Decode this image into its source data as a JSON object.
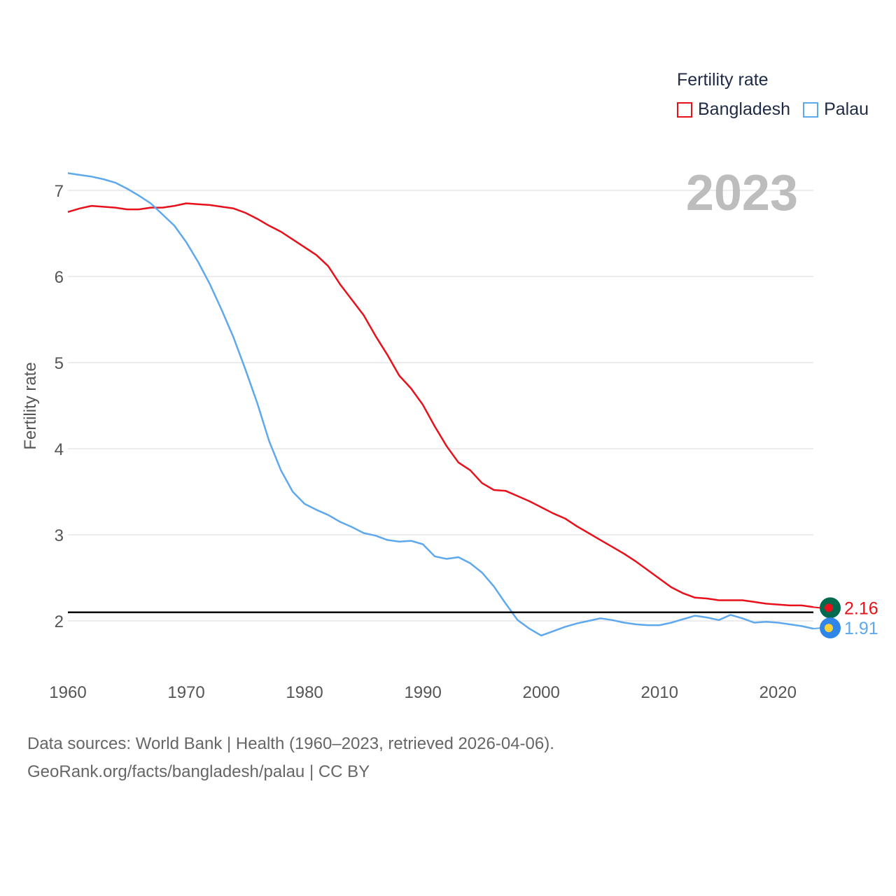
{
  "chart_data": {
    "type": "line",
    "title": "Fertility rate",
    "ylabel": "Fertility rate",
    "xlabel": "",
    "year_label": "2023",
    "xlim": [
      1960,
      2023
    ],
    "ylim": [
      1.4,
      7.3
    ],
    "x_ticks": [
      1960,
      1970,
      1980,
      1990,
      2000,
      2010,
      2020
    ],
    "y_ticks": [
      2,
      3,
      4,
      5,
      6,
      7
    ],
    "reference_line": 2.1,
    "x": [
      1960,
      1961,
      1962,
      1963,
      1964,
      1965,
      1966,
      1967,
      1968,
      1969,
      1970,
      1971,
      1972,
      1973,
      1974,
      1975,
      1976,
      1977,
      1978,
      1979,
      1980,
      1981,
      1982,
      1983,
      1984,
      1985,
      1986,
      1987,
      1988,
      1989,
      1990,
      1991,
      1992,
      1993,
      1994,
      1995,
      1996,
      1997,
      1998,
      1999,
      2000,
      2001,
      2002,
      2003,
      2004,
      2005,
      2006,
      2007,
      2008,
      2009,
      2010,
      2011,
      2012,
      2013,
      2014,
      2015,
      2016,
      2017,
      2018,
      2019,
      2020,
      2021,
      2022,
      2023
    ],
    "series": [
      {
        "name": "Bangladesh",
        "color": "#e8111b",
        "end_label": "2.16",
        "values": [
          6.75,
          6.79,
          6.82,
          6.81,
          6.8,
          6.78,
          6.78,
          6.8,
          6.8,
          6.82,
          6.85,
          6.84,
          6.83,
          6.81,
          6.79,
          6.74,
          6.67,
          6.59,
          6.52,
          6.43,
          6.34,
          6.25,
          6.12,
          5.91,
          5.73,
          5.55,
          5.31,
          5.09,
          4.85,
          4.7,
          4.51,
          4.26,
          4.03,
          3.84,
          3.75,
          3.6,
          3.52,
          3.51,
          3.45,
          3.39,
          3.32,
          3.25,
          3.19,
          3.1,
          3.02,
          2.94,
          2.86,
          2.78,
          2.69,
          2.59,
          2.49,
          2.39,
          2.32,
          2.27,
          2.26,
          2.24,
          2.24,
          2.24,
          2.22,
          2.2,
          2.19,
          2.18,
          2.18,
          2.16
        ]
      },
      {
        "name": "Palau",
        "color": "#5ea8ee",
        "end_label": "1.91",
        "values": [
          7.2,
          7.18,
          7.16,
          7.13,
          7.09,
          7.02,
          6.94,
          6.85,
          6.72,
          6.59,
          6.4,
          6.17,
          5.91,
          5.61,
          5.29,
          4.92,
          4.53,
          4.09,
          3.75,
          3.5,
          3.36,
          3.29,
          3.23,
          3.15,
          3.09,
          3.02,
          2.99,
          2.94,
          2.92,
          2.93,
          2.89,
          2.75,
          2.72,
          2.74,
          2.67,
          2.56,
          2.4,
          2.2,
          2.01,
          1.91,
          1.83,
          1.88,
          1.93,
          1.97,
          2.0,
          2.03,
          2.01,
          1.98,
          1.96,
          1.95,
          1.95,
          1.98,
          2.02,
          2.06,
          2.04,
          2.01,
          2.07,
          2.03,
          1.98,
          1.99,
          1.98,
          1.96,
          1.94,
          1.91
        ]
      }
    ]
  },
  "legend": {
    "title": "Fertility rate",
    "items": [
      {
        "label": "Bangladesh",
        "color": "#e8111b"
      },
      {
        "label": "Palau",
        "color": "#5ea8ee"
      }
    ]
  },
  "footer": {
    "line1": "Data sources: World Bank | Health (1960–2023, retrieved 2026-04-06).",
    "line2": "GeoRank.org/facts/bangladesh/palau | CC BY"
  },
  "colors": {
    "grid": "#e6e6e6",
    "reference": "#000000",
    "bangladesh_flag_bg": "#006a4e",
    "bangladesh_flag_disc": "#e8111b",
    "palau_flag_bg": "#2f86e8",
    "palau_flag_disc": "#f7d23a"
  }
}
